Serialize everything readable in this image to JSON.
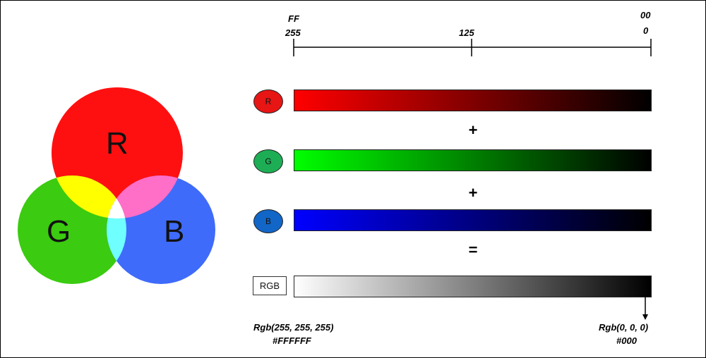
{
  "venn": {
    "labels": {
      "r": "R",
      "g": "G",
      "b": "B"
    },
    "colors": {
      "red": "#FF1010",
      "green": "#3BCB10",
      "blue": "#3F6BFA",
      "yellow": "#FFFF00",
      "magenta": "#FF6EC7",
      "cyan": "#6FFFFF",
      "white": "#FFFFFF"
    }
  },
  "scale": {
    "left_hex": "FF",
    "left_dec": "255",
    "mid_dec": "125",
    "right_hex": "00",
    "right_dec": "0"
  },
  "channels": [
    {
      "label": "R",
      "chip_color": "#E81515",
      "bar_from": "#FF0000",
      "bar_to": "#000000"
    },
    {
      "label": "G",
      "chip_color": "#1DAE55",
      "bar_from": "#00FF00",
      "bar_to": "#000000"
    },
    {
      "label": "B",
      "chip_color": "#1266C8",
      "bar_from": "#0000FF",
      "bar_to": "#000000"
    }
  ],
  "operators": {
    "plus1": "+",
    "plus2": "+",
    "equals": "="
  },
  "result": {
    "label": "RGB",
    "bar_from": "#FFFFFF",
    "bar_to": "#000000",
    "left_rgb": "Rgb(255, 255, 255)",
    "left_hex": "#FFFFFF",
    "right_rgb": "Rgb(0, 0, 0)",
    "right_hex": "#000"
  }
}
